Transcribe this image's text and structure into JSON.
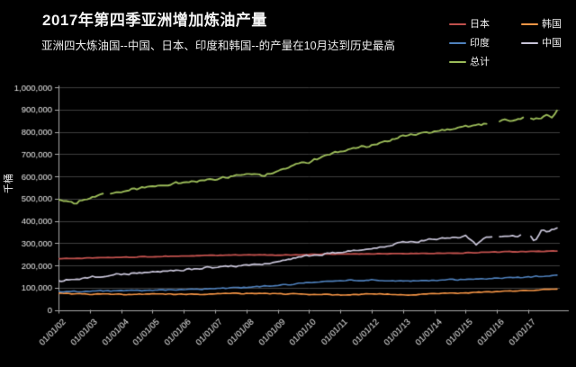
{
  "chart_data": {
    "type": "line",
    "title": "2017年第四季亚洲增加炼油产量",
    "subtitle": "亚洲四大炼油国--中国、日本、印度和韩国--的产量在10月达到历史最高",
    "ylabel": "千桶",
    "xlabel": "",
    "ylim": [
      0,
      1000000
    ],
    "grid": true,
    "legend_position": "top-right",
    "background_color": "#000000",
    "grid_color": "#3e3e3e",
    "axis_color": "#a8a8a8",
    "tick_label_color": "#e6e6e6",
    "y_tick_values": [
      0,
      100000,
      200000,
      300000,
      400000,
      500000,
      600000,
      700000,
      800000,
      900000,
      1000000
    ],
    "y_tick_labels": [
      "0",
      "100,000",
      "200,000",
      "300,000",
      "400,000",
      "500,000",
      "600,000",
      "700,000",
      "800,000",
      "900,000",
      "1,000,000"
    ],
    "x_tick_years": [
      2002,
      2003,
      2004,
      2005,
      2006,
      2007,
      2008,
      2009,
      2010,
      2011,
      2012,
      2013,
      2014,
      2015,
      2016,
      2017
    ],
    "x_tick_labels": [
      "01/01/02",
      "01/01/03",
      "01/01/04",
      "01/01/05",
      "01/01/06",
      "01/01/07",
      "01/01/08",
      "01/01/09",
      "01/01/10",
      "01/01/11",
      "01/01/12",
      "01/01/13",
      "01/01/14",
      "01/01/15",
      "01/01/16",
      "01/01/17"
    ],
    "x_start": 2002.0,
    "x_end": 2017.92,
    "series": [
      {
        "name": "日本",
        "color": "#C0504D",
        "width": 1.8,
        "noise": 1800,
        "gaps": [],
        "points": [
          [
            2002,
            230000
          ],
          [
            2003,
            233000
          ],
          [
            2004,
            236000
          ],
          [
            2005,
            239000
          ],
          [
            2006,
            242000
          ],
          [
            2007,
            245000
          ],
          [
            2008,
            247000
          ],
          [
            2009,
            246000
          ],
          [
            2010,
            249000
          ],
          [
            2011,
            251000
          ],
          [
            2012,
            252000
          ],
          [
            2013,
            253000
          ],
          [
            2014,
            254000
          ],
          [
            2015,
            256000
          ],
          [
            2016,
            260000
          ],
          [
            2017,
            262000
          ],
          [
            2017.92,
            264000
          ]
        ]
      },
      {
        "name": "韩国",
        "color": "#F79646",
        "width": 1.6,
        "noise": 2800,
        "gaps": [],
        "points": [
          [
            2002,
            74000
          ],
          [
            2003,
            71000
          ],
          [
            2004,
            69000
          ],
          [
            2005,
            71000
          ],
          [
            2006,
            70000
          ],
          [
            2007,
            72000
          ],
          [
            2008,
            74000
          ],
          [
            2009,
            72000
          ],
          [
            2010,
            70000
          ],
          [
            2011,
            68000
          ],
          [
            2012,
            72000
          ],
          [
            2013,
            68000
          ],
          [
            2014,
            72000
          ],
          [
            2015,
            76000
          ],
          [
            2016,
            82000
          ],
          [
            2017,
            86000
          ],
          [
            2017.92,
            95000
          ]
        ]
      },
      {
        "name": "印度",
        "color": "#4F81BD",
        "width": 1.6,
        "noise": 3200,
        "gaps": [],
        "points": [
          [
            2002,
            82000
          ],
          [
            2003,
            84000
          ],
          [
            2004,
            86000
          ],
          [
            2005,
            88000
          ],
          [
            2006,
            92000
          ],
          [
            2007,
            96000
          ],
          [
            2008,
            101000
          ],
          [
            2009,
            110000
          ],
          [
            2010,
            122000
          ],
          [
            2011,
            131000
          ],
          [
            2012,
            135000
          ],
          [
            2013,
            128000
          ],
          [
            2014,
            133000
          ],
          [
            2015,
            137000
          ],
          [
            2016,
            142000
          ],
          [
            2017,
            147000
          ],
          [
            2017.92,
            156000
          ]
        ]
      },
      {
        "name": "中国",
        "color": "#C8C4D8",
        "width": 1.7,
        "noise": 5500,
        "gaps": [
          [
            2015.88,
            2016.08
          ],
          [
            2016.8,
            2017.0
          ]
        ],
        "points": [
          [
            2002,
            128000
          ],
          [
            2003,
            146000
          ],
          [
            2004,
            161000
          ],
          [
            2005,
            170000
          ],
          [
            2006,
            181000
          ],
          [
            2007,
            192000
          ],
          [
            2008,
            201000
          ],
          [
            2009,
            213000
          ],
          [
            2009.7,
            238000
          ],
          [
            2010.3,
            248000
          ],
          [
            2011,
            258000
          ],
          [
            2012,
            276000
          ],
          [
            2013,
            302000
          ],
          [
            2014,
            316000
          ],
          [
            2015,
            330000
          ],
          [
            2015.35,
            293000
          ],
          [
            2015.6,
            323000
          ],
          [
            2016.3,
            328000
          ],
          [
            2016.7,
            333000
          ],
          [
            2017.05,
            340000
          ],
          [
            2017.2,
            300000
          ],
          [
            2017.4,
            356000
          ],
          [
            2017.6,
            350000
          ],
          [
            2017.92,
            368000
          ]
        ]
      },
      {
        "name": "总计",
        "color": "#9BBB59",
        "width": 1.9,
        "noise": 7500,
        "gaps": [
          [
            2003.45,
            2003.62
          ],
          [
            2015.7,
            2016.02
          ],
          [
            2016.85,
            2017.05
          ]
        ],
        "points": [
          [
            2002,
            495000
          ],
          [
            2002.5,
            480000
          ],
          [
            2003,
            505000
          ],
          [
            2004,
            533000
          ],
          [
            2005,
            556000
          ],
          [
            2006,
            573000
          ],
          [
            2007,
            589000
          ],
          [
            2008,
            612000
          ],
          [
            2008.6,
            603000
          ],
          [
            2009,
            630000
          ],
          [
            2010,
            665000
          ],
          [
            2011,
            712000
          ],
          [
            2012,
            740000
          ],
          [
            2013,
            780000
          ],
          [
            2014,
            798000
          ],
          [
            2015,
            822000
          ],
          [
            2016,
            845000
          ],
          [
            2016.5,
            856000
          ],
          [
            2017,
            866000
          ],
          [
            2017.3,
            858000
          ],
          [
            2017.6,
            876000
          ],
          [
            2017.75,
            864000
          ],
          [
            2017.92,
            893000
          ]
        ]
      }
    ]
  }
}
